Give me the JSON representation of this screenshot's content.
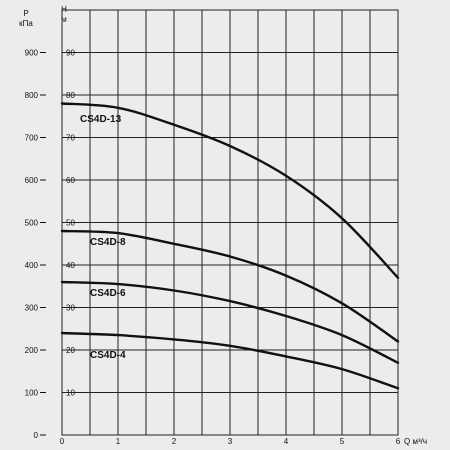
{
  "chart_data": {
    "type": "line",
    "title": "",
    "x": [
      0,
      1,
      2,
      3,
      4,
      5,
      6
    ],
    "xlabel": "Q м³/ч",
    "xlim": [
      0,
      6
    ],
    "x_ticks": [
      "0",
      "1",
      "2",
      "3",
      "4",
      "5",
      "6"
    ],
    "ylabel_left": "P кПа",
    "ylim_left": [
      0,
      1000
    ],
    "y_left_ticks": [
      "0",
      "100",
      "200",
      "300",
      "400",
      "500",
      "600",
      "700",
      "800",
      "900"
    ],
    "ylabel_right": "H м",
    "ylim_right": [
      0,
      100
    ],
    "y_right_ticks": [
      "10",
      "20",
      "30",
      "40",
      "50",
      "60",
      "70",
      "80",
      "90"
    ],
    "grid": true,
    "series": [
      {
        "name": "CS4D-13",
        "x": [
          0,
          1,
          2,
          3,
          4,
          5,
          6
        ],
        "y": [
          78,
          77,
          73,
          68,
          61,
          51,
          37
        ]
      },
      {
        "name": "CS4D-8",
        "x": [
          0,
          1,
          2,
          3,
          4,
          5,
          6
        ],
        "y": [
          48,
          47.5,
          45,
          42,
          37.5,
          31,
          22
        ]
      },
      {
        "name": "CS4D-6",
        "x": [
          0,
          1,
          2,
          3,
          4,
          5,
          6
        ],
        "y": [
          36,
          35.5,
          34,
          31.5,
          28,
          23.5,
          17
        ]
      },
      {
        "name": "CS4D-4",
        "x": [
          0,
          1,
          2,
          3,
          4,
          5,
          6
        ],
        "y": [
          24,
          23.5,
          22.5,
          21,
          18.5,
          15.5,
          11
        ]
      }
    ]
  },
  "labels": {
    "p_symbol": "P",
    "p_unit": "кПа",
    "h_symbol": "H",
    "h_unit": "м",
    "q_label": "Q м³/ч"
  }
}
